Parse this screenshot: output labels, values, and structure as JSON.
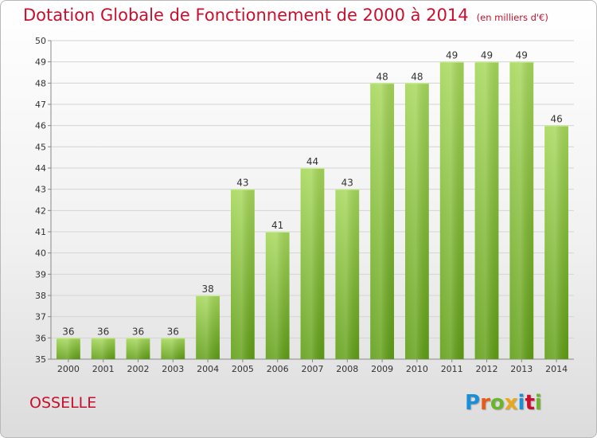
{
  "header": {
    "title": "Dotation Globale de Fonctionnement de 2000 à 2014",
    "units": "(en milliers d'€)"
  },
  "footer": {
    "place": "OSSELLE",
    "brand": "Proxiti",
    "brand_colors": [
      "#1a8fd8",
      "#e85a1a",
      "#6ab52c",
      "#e8a81a",
      "#1a8fd8",
      "#c8102e",
      "#6ab52c"
    ]
  },
  "colors": {
    "title": "#c8102e",
    "bar_top": "#a6d85a",
    "bar_bottom": "#5f9e14",
    "grid": "#d4d4d4"
  },
  "chart_data": {
    "type": "bar",
    "title": "Dotation Globale de Fonctionnement de 2000 à 2014",
    "subtitle": "(en milliers d'€)",
    "xlabel": "",
    "ylabel": "",
    "categories": [
      "2000",
      "2001",
      "2002",
      "2003",
      "2004",
      "2005",
      "2006",
      "2007",
      "2008",
      "2009",
      "2010",
      "2011",
      "2012",
      "2013",
      "2014"
    ],
    "values": [
      36,
      36,
      36,
      36,
      38,
      43,
      41,
      44,
      43,
      48,
      48,
      49,
      49,
      49,
      46
    ],
    "ylim": [
      35,
      50
    ],
    "yticks": [
      35,
      36,
      37,
      38,
      39,
      40,
      41,
      42,
      43,
      44,
      45,
      46,
      47,
      48,
      49,
      50
    ],
    "grid": true,
    "data_labels": true
  }
}
